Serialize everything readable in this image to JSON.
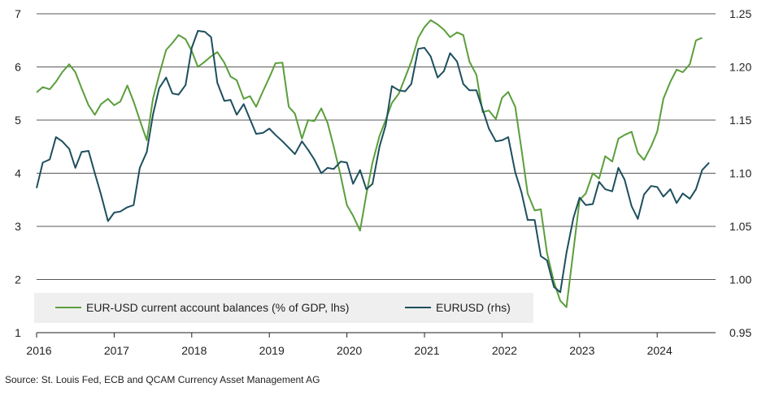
{
  "chart_data": {
    "type": "line",
    "x_ticks": [
      "2016",
      "2017",
      "2018",
      "2019",
      "2020",
      "2021",
      "2022",
      "2023",
      "2024"
    ],
    "y_left": {
      "min": 1,
      "max": 7,
      "ticks": [
        1,
        2,
        3,
        4,
        5,
        6,
        7
      ],
      "tick_labels": [
        "1",
        "2",
        "3",
        "4",
        "5",
        "6",
        "7"
      ]
    },
    "y_right": {
      "min": 0.95,
      "max": 1.25,
      "ticks": [
        0.95,
        1.0,
        1.05,
        1.1,
        1.15,
        1.2,
        1.25
      ],
      "tick_labels": [
        "0.95",
        "1.00",
        "1.05",
        "1.10",
        "1.15",
        "1.20",
        "1.25"
      ]
    },
    "grid": "horizontal",
    "legend_position": "bottom-left",
    "series": [
      {
        "name": "EUR-USD current account balances (% of GDP, lhs)",
        "axis": "left",
        "color": "#5a9e3c",
        "points": [
          [
            2016.0,
            5.52
          ],
          [
            2016.08,
            5.62
          ],
          [
            2016.17,
            5.58
          ],
          [
            2016.25,
            5.72
          ],
          [
            2016.33,
            5.9
          ],
          [
            2016.42,
            6.05
          ],
          [
            2016.5,
            5.9
          ],
          [
            2016.58,
            5.6
          ],
          [
            2016.67,
            5.28
          ],
          [
            2016.75,
            5.1
          ],
          [
            2016.83,
            5.3
          ],
          [
            2016.92,
            5.4
          ],
          [
            2017.0,
            5.28
          ],
          [
            2017.08,
            5.35
          ],
          [
            2017.17,
            5.65
          ],
          [
            2017.25,
            5.35
          ],
          [
            2017.33,
            5.0
          ],
          [
            2017.42,
            4.62
          ],
          [
            2017.5,
            5.4
          ],
          [
            2017.58,
            5.85
          ],
          [
            2017.67,
            6.32
          ],
          [
            2017.75,
            6.45
          ],
          [
            2017.83,
            6.6
          ],
          [
            2017.92,
            6.52
          ],
          [
            2018.0,
            6.3
          ],
          [
            2018.08,
            6.0
          ],
          [
            2018.17,
            6.1
          ],
          [
            2018.25,
            6.2
          ],
          [
            2018.33,
            6.28
          ],
          [
            2018.42,
            6.08
          ],
          [
            2018.5,
            5.82
          ],
          [
            2018.58,
            5.75
          ],
          [
            2018.67,
            5.4
          ],
          [
            2018.75,
            5.45
          ],
          [
            2018.83,
            5.25
          ],
          [
            2018.92,
            5.55
          ],
          [
            2019.0,
            5.8
          ],
          [
            2019.08,
            6.07
          ],
          [
            2019.17,
            6.08
          ],
          [
            2019.25,
            5.25
          ],
          [
            2019.33,
            5.12
          ],
          [
            2019.42,
            4.65
          ],
          [
            2019.5,
            5.0
          ],
          [
            2019.58,
            4.98
          ],
          [
            2019.67,
            5.22
          ],
          [
            2019.75,
            4.95
          ],
          [
            2019.83,
            4.5
          ],
          [
            2019.92,
            3.95
          ],
          [
            2020.0,
            3.4
          ],
          [
            2020.08,
            3.2
          ],
          [
            2020.17,
            2.92
          ],
          [
            2020.25,
            3.6
          ],
          [
            2020.33,
            4.2
          ],
          [
            2020.42,
            4.7
          ],
          [
            2020.5,
            5.0
          ],
          [
            2020.58,
            5.32
          ],
          [
            2020.67,
            5.5
          ],
          [
            2020.75,
            5.8
          ],
          [
            2020.83,
            6.1
          ],
          [
            2020.92,
            6.55
          ],
          [
            2021.0,
            6.75
          ],
          [
            2021.08,
            6.88
          ],
          [
            2021.17,
            6.8
          ],
          [
            2021.25,
            6.7
          ],
          [
            2021.33,
            6.56
          ],
          [
            2021.42,
            6.65
          ],
          [
            2021.5,
            6.6
          ],
          [
            2021.58,
            6.1
          ],
          [
            2021.67,
            5.85
          ],
          [
            2021.75,
            5.15
          ],
          [
            2021.83,
            5.18
          ],
          [
            2021.92,
            5.02
          ],
          [
            2022.0,
            5.42
          ],
          [
            2022.08,
            5.53
          ],
          [
            2022.17,
            5.25
          ],
          [
            2022.25,
            4.45
          ],
          [
            2022.33,
            3.62
          ],
          [
            2022.42,
            3.3
          ],
          [
            2022.5,
            3.32
          ],
          [
            2022.58,
            2.5
          ],
          [
            2022.67,
            1.95
          ],
          [
            2022.75,
            1.6
          ],
          [
            2022.83,
            1.48
          ],
          [
            2022.92,
            2.55
          ],
          [
            2023.0,
            3.5
          ],
          [
            2023.08,
            3.62
          ],
          [
            2023.17,
            4.0
          ],
          [
            2023.25,
            3.9
          ],
          [
            2023.33,
            4.32
          ],
          [
            2023.42,
            4.22
          ],
          [
            2023.5,
            4.65
          ],
          [
            2023.58,
            4.72
          ],
          [
            2023.67,
            4.78
          ],
          [
            2023.75,
            4.38
          ],
          [
            2023.83,
            4.25
          ],
          [
            2023.92,
            4.5
          ],
          [
            2024.0,
            4.78
          ],
          [
            2024.08,
            5.4
          ],
          [
            2024.17,
            5.72
          ],
          [
            2024.25,
            5.95
          ],
          [
            2024.33,
            5.9
          ],
          [
            2024.42,
            6.05
          ],
          [
            2024.5,
            6.5
          ],
          [
            2024.58,
            6.55
          ]
        ]
      },
      {
        "name": "EURUSD (rhs)",
        "axis": "right",
        "color": "#1d4f5e",
        "points": [
          [
            2016.0,
            1.086
          ],
          [
            2016.08,
            1.11
          ],
          [
            2016.17,
            1.113
          ],
          [
            2016.25,
            1.134
          ],
          [
            2016.33,
            1.13
          ],
          [
            2016.42,
            1.123
          ],
          [
            2016.5,
            1.105
          ],
          [
            2016.58,
            1.12
          ],
          [
            2016.67,
            1.121
          ],
          [
            2016.75,
            1.1
          ],
          [
            2016.83,
            1.08
          ],
          [
            2016.92,
            1.055
          ],
          [
            2017.0,
            1.063
          ],
          [
            2017.08,
            1.064
          ],
          [
            2017.17,
            1.068
          ],
          [
            2017.25,
            1.07
          ],
          [
            2017.33,
            1.105
          ],
          [
            2017.42,
            1.12
          ],
          [
            2017.5,
            1.155
          ],
          [
            2017.58,
            1.18
          ],
          [
            2017.67,
            1.19
          ],
          [
            2017.75,
            1.175
          ],
          [
            2017.83,
            1.174
          ],
          [
            2017.92,
            1.183
          ],
          [
            2018.0,
            1.218
          ],
          [
            2018.08,
            1.234
          ],
          [
            2018.17,
            1.233
          ],
          [
            2018.25,
            1.228
          ],
          [
            2018.33,
            1.185
          ],
          [
            2018.42,
            1.168
          ],
          [
            2018.5,
            1.169
          ],
          [
            2018.58,
            1.155
          ],
          [
            2018.67,
            1.165
          ],
          [
            2018.75,
            1.151
          ],
          [
            2018.83,
            1.137
          ],
          [
            2018.92,
            1.138
          ],
          [
            2019.0,
            1.142
          ],
          [
            2019.08,
            1.136
          ],
          [
            2019.17,
            1.13
          ],
          [
            2019.25,
            1.124
          ],
          [
            2019.33,
            1.118
          ],
          [
            2019.42,
            1.13
          ],
          [
            2019.5,
            1.122
          ],
          [
            2019.58,
            1.113
          ],
          [
            2019.67,
            1.1
          ],
          [
            2019.75,
            1.105
          ],
          [
            2019.83,
            1.104
          ],
          [
            2019.92,
            1.111
          ],
          [
            2020.0,
            1.11
          ],
          [
            2020.08,
            1.09
          ],
          [
            2020.17,
            1.103
          ],
          [
            2020.25,
            1.085
          ],
          [
            2020.33,
            1.09
          ],
          [
            2020.42,
            1.125
          ],
          [
            2020.5,
            1.145
          ],
          [
            2020.58,
            1.182
          ],
          [
            2020.67,
            1.178
          ],
          [
            2020.75,
            1.177
          ],
          [
            2020.83,
            1.184
          ],
          [
            2020.92,
            1.217
          ],
          [
            2021.0,
            1.218
          ],
          [
            2021.08,
            1.21
          ],
          [
            2021.17,
            1.19
          ],
          [
            2021.25,
            1.196
          ],
          [
            2021.33,
            1.213
          ],
          [
            2021.42,
            1.205
          ],
          [
            2021.5,
            1.184
          ],
          [
            2021.58,
            1.178
          ],
          [
            2021.67,
            1.178
          ],
          [
            2021.75,
            1.16
          ],
          [
            2021.83,
            1.142
          ],
          [
            2021.92,
            1.13
          ],
          [
            2022.0,
            1.131
          ],
          [
            2022.08,
            1.134
          ],
          [
            2022.17,
            1.101
          ],
          [
            2022.25,
            1.082
          ],
          [
            2022.33,
            1.056
          ],
          [
            2022.42,
            1.056
          ],
          [
            2022.5,
            1.022
          ],
          [
            2022.58,
            1.018
          ],
          [
            2022.67,
            0.993
          ],
          [
            2022.75,
            0.988
          ],
          [
            2022.83,
            1.025
          ],
          [
            2022.92,
            1.058
          ],
          [
            2023.0,
            1.077
          ],
          [
            2023.08,
            1.07
          ],
          [
            2023.17,
            1.071
          ],
          [
            2023.25,
            1.092
          ],
          [
            2023.33,
            1.085
          ],
          [
            2023.42,
            1.083
          ],
          [
            2023.5,
            1.105
          ],
          [
            2023.58,
            1.094
          ],
          [
            2023.67,
            1.069
          ],
          [
            2023.75,
            1.057
          ],
          [
            2023.83,
            1.08
          ],
          [
            2023.92,
            1.088
          ],
          [
            2024.0,
            1.087
          ],
          [
            2024.08,
            1.078
          ],
          [
            2024.17,
            1.085
          ],
          [
            2024.25,
            1.072
          ],
          [
            2024.33,
            1.081
          ],
          [
            2024.42,
            1.076
          ],
          [
            2024.5,
            1.085
          ],
          [
            2024.58,
            1.103
          ],
          [
            2024.67,
            1.11
          ]
        ]
      }
    ]
  },
  "source_text": "Source: St. Louis Fed, ECB and QCAM Currency Asset Management AG"
}
